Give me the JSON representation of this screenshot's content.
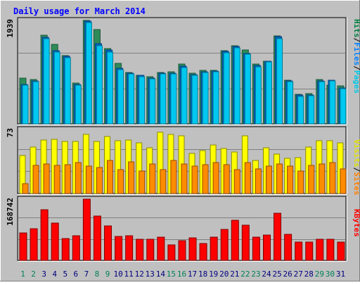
{
  "chart_data": [
    {
      "type": "bar",
      "title": "Daily usage for March 2014",
      "categories": [
        "1",
        "2",
        "3",
        "4",
        "5",
        "6",
        "7",
        "8",
        "9",
        "10",
        "11",
        "12",
        "13",
        "14",
        "15",
        "16",
        "17",
        "18",
        "19",
        "20",
        "21",
        "22",
        "23",
        "24",
        "25",
        "26",
        "27",
        "28",
        "29",
        "30",
        "31"
      ],
      "weekend_days": [
        "1",
        "2",
        "8",
        "9",
        "15",
        "16",
        "22",
        "23",
        "29",
        "30"
      ],
      "max_label": "1939",
      "ylim": [
        0,
        1939
      ],
      "legend": [
        {
          "label": "Pages",
          "color": "#00c8e8"
        },
        {
          "label": "/",
          "color": "#000000"
        },
        {
          "label": "Files",
          "color": "#0080ff"
        },
        {
          "label": "/",
          "color": "#000000"
        },
        {
          "label": "Hits",
          "color": "#008040"
        }
      ],
      "series": [
        {
          "name": "Hits",
          "color": "#2e8b57",
          "values": [
            855,
            832,
            1657,
            1492,
            1275,
            768,
            1939,
            1765,
            1405,
            1128,
            963,
            906,
            880,
            960,
            981,
            1125,
            948,
            1005,
            1003,
            1368,
            1465,
            1382,
            1123,
            1180,
            1650,
            812,
            558,
            570,
            826,
            725,
            710
          ]
        },
        {
          "name": "Files",
          "color": "#0060c0",
          "values": [
            745,
            805,
            1625,
            1368,
            1270,
            742,
            1930,
            1505,
            1380,
            1048,
            948,
            904,
            855,
            948,
            955,
            1082,
            922,
            980,
            995,
            1360,
            1452,
            1325,
            1090,
            1174,
            1630,
            800,
            535,
            540,
            802,
            815,
            675
          ]
        },
        {
          "name": "Pages",
          "color": "#00c8f0",
          "values": [
            730,
            790,
            1590,
            1340,
            1240,
            720,
            1900,
            1470,
            1340,
            1020,
            935,
            885,
            840,
            930,
            940,
            1060,
            905,
            968,
            978,
            1330,
            1425,
            1300,
            1070,
            1155,
            1595,
            790,
            520,
            530,
            785,
            800,
            660
          ]
        }
      ]
    },
    {
      "type": "bar",
      "categories": [
        "1",
        "2",
        "3",
        "4",
        "5",
        "6",
        "7",
        "8",
        "9",
        "10",
        "11",
        "12",
        "13",
        "14",
        "15",
        "16",
        "17",
        "18",
        "19",
        "20",
        "21",
        "22",
        "23",
        "24",
        "25",
        "26",
        "27",
        "28",
        "29",
        "30",
        "31"
      ],
      "max_label": "73",
      "ylim": [
        0,
        73
      ],
      "legend": [
        {
          "label": "Sites",
          "color": "#ff8000"
        },
        {
          "label": "/",
          "color": "#000000"
        },
        {
          "label": "Visits",
          "color": "#e0e000"
        }
      ],
      "series": [
        {
          "name": "Visits",
          "color": "#ffff00",
          "values": [
            43,
            53,
            61,
            62,
            59,
            59,
            67,
            59,
            65,
            60,
            61,
            58,
            52,
            70,
            67,
            66,
            46,
            49,
            55,
            51,
            47,
            66,
            38,
            52,
            45,
            40,
            41,
            53,
            60,
            60,
            58
          ]
        },
        {
          "name": "Sites",
          "color": "#ff8c00",
          "values": [
            11,
            32,
            34,
            32,
            33,
            35,
            31,
            30,
            38,
            27,
            36,
            26,
            34,
            27,
            38,
            34,
            31,
            33,
            35,
            33,
            27,
            35,
            28,
            31,
            34,
            31,
            26,
            32,
            34,
            35,
            28
          ]
        }
      ]
    },
    {
      "type": "bar",
      "categories": [
        "1",
        "2",
        "3",
        "4",
        "5",
        "6",
        "7",
        "8",
        "9",
        "10",
        "11",
        "12",
        "13",
        "14",
        "15",
        "16",
        "17",
        "18",
        "19",
        "20",
        "21",
        "22",
        "23",
        "24",
        "25",
        "26",
        "27",
        "28",
        "29",
        "30",
        "31"
      ],
      "max_label": "168742",
      "ylim": [
        0,
        168742
      ],
      "legend": [
        {
          "label": "KBytes",
          "color": "#ff0000"
        }
      ],
      "series": [
        {
          "name": "KBytes",
          "color": "#ff0000",
          "values": [
            75500,
            87500,
            140000,
            102000,
            59500,
            68000,
            168742,
            122500,
            95000,
            66500,
            68000,
            58500,
            58500,
            64500,
            43500,
            54500,
            61500,
            47500,
            64500,
            85500,
            111000,
            96500,
            64000,
            70500,
            130500,
            71500,
            50000,
            50500,
            58500,
            59000,
            50000
          ]
        }
      ]
    }
  ]
}
